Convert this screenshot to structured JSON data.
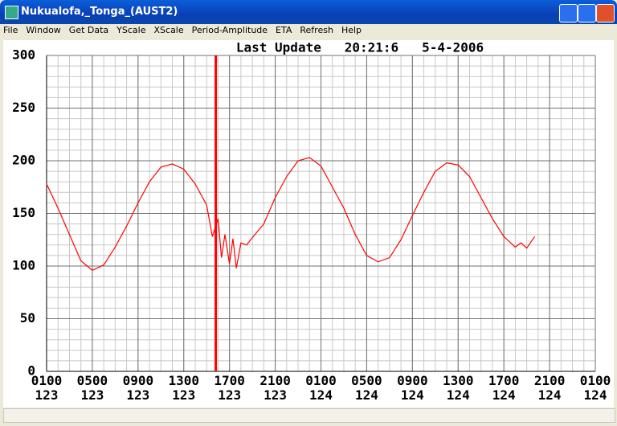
{
  "window": {
    "title": "Nukualofa,_Tonga_(AUST2)",
    "menu": [
      "File",
      "Window",
      "Get Data",
      "YScale",
      "XScale",
      "Period-Amplitude",
      "ETA",
      "Refresh",
      "Help"
    ]
  },
  "chart_data": {
    "type": "line",
    "title": "Last Update   20:21:6   5-4-2006",
    "x": [
      0,
      1,
      2,
      3,
      4,
      5,
      6,
      7,
      8,
      9,
      10,
      11,
      12,
      13,
      14,
      14.5,
      15,
      15.3,
      15.6,
      16,
      16.3,
      16.6,
      17,
      17.5,
      18,
      19,
      20,
      21,
      22,
      23,
      24,
      25,
      26,
      27,
      28,
      29,
      30,
      31,
      32,
      33,
      34,
      35,
      36,
      37,
      38,
      39,
      40,
      41,
      41.5,
      42,
      42.7
    ],
    "series": [
      {
        "color": "#ff0000",
        "values": [
          178,
          155,
          130,
          105,
          96,
          101,
          118,
          138,
          160,
          180,
          194,
          197,
          192,
          178,
          158,
          128,
          145,
          108,
          130,
          102,
          126,
          98,
          122,
          120,
          127,
          140,
          165,
          185,
          200,
          203,
          195,
          175,
          155,
          130,
          110,
          104,
          108,
          125,
          148,
          170,
          190,
          198,
          196,
          185,
          165,
          145,
          128,
          118,
          122,
          117,
          128
        ]
      }
    ],
    "xlim": [
      0,
      48
    ],
    "ylim": [
      0,
      300
    ],
    "xticks": [
      {
        "value": 0,
        "label": "0100"
      },
      {
        "value": 4,
        "label": "0500"
      },
      {
        "value": 8,
        "label": "0900"
      },
      {
        "value": 12,
        "label": "1300"
      },
      {
        "value": 16,
        "label": "1700"
      },
      {
        "value": 20,
        "label": "2100"
      },
      {
        "value": 24,
        "label": "0100"
      },
      {
        "value": 28,
        "label": "0500"
      },
      {
        "value": 32,
        "label": "0900"
      },
      {
        "value": 36,
        "label": "1300"
      },
      {
        "value": 40,
        "label": "1700"
      },
      {
        "value": 44,
        "label": "2100"
      },
      {
        "value": 48,
        "label": "0100"
      }
    ],
    "xtick_days": [
      "123",
      "123",
      "123",
      "123",
      "123",
      "123",
      "124",
      "124",
      "124",
      "124",
      "124",
      "124",
      "124"
    ],
    "yticks": [
      0,
      50,
      100,
      150,
      200,
      250,
      300
    ],
    "xminor_step": 1,
    "yminor_step": 10,
    "grid": true,
    "marker_x": 14.8,
    "marker_color": "#ff0000"
  }
}
